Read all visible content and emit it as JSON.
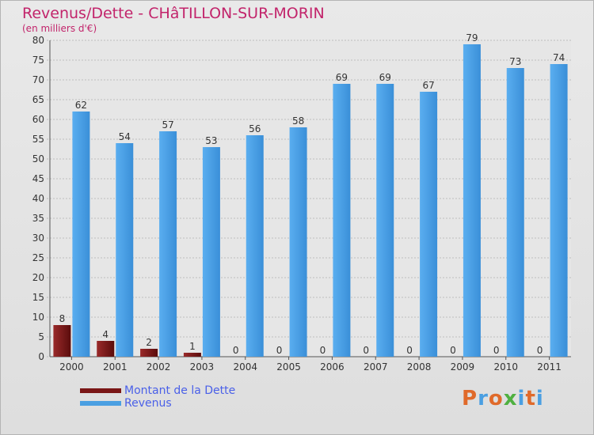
{
  "title": "Revenus/Dette - CHâTILLON-SUR-MORIN",
  "subtitle": "(en milliers d'€)",
  "legend": {
    "items": [
      {
        "label": "Montant de la Dette",
        "color": "#7a1616"
      },
      {
        "label": "Revenus",
        "color": "#4a9fe2"
      }
    ]
  },
  "logo": {
    "text": "Proxiti",
    "colors": [
      "#e06a2a",
      "#4a9fe2",
      "#e06a2a",
      "#4fb040",
      "#4a9fe2",
      "#e06a2a",
      "#4a9fe2"
    ]
  },
  "chart_data": {
    "type": "bar",
    "categories": [
      "2000",
      "2001",
      "2002",
      "2003",
      "2004",
      "2005",
      "2006",
      "2007",
      "2008",
      "2009",
      "2010",
      "2011"
    ],
    "series": [
      {
        "name": "Montant de la Dette",
        "color": "#7a1616",
        "values": [
          8,
          4,
          2,
          1,
          0,
          0,
          0,
          0,
          0,
          0,
          0,
          0
        ]
      },
      {
        "name": "Revenus",
        "color": "#4a9fe2",
        "values": [
          62,
          54,
          57,
          53,
          56,
          58,
          69,
          69,
          67,
          79,
          73,
          74
        ]
      }
    ],
    "ylim": [
      0,
      80
    ],
    "yticks": [
      0,
      5,
      10,
      15,
      20,
      25,
      30,
      35,
      40,
      45,
      50,
      55,
      60,
      65,
      70,
      75,
      80
    ],
    "grid": true,
    "legend_position": "bottom-left"
  }
}
